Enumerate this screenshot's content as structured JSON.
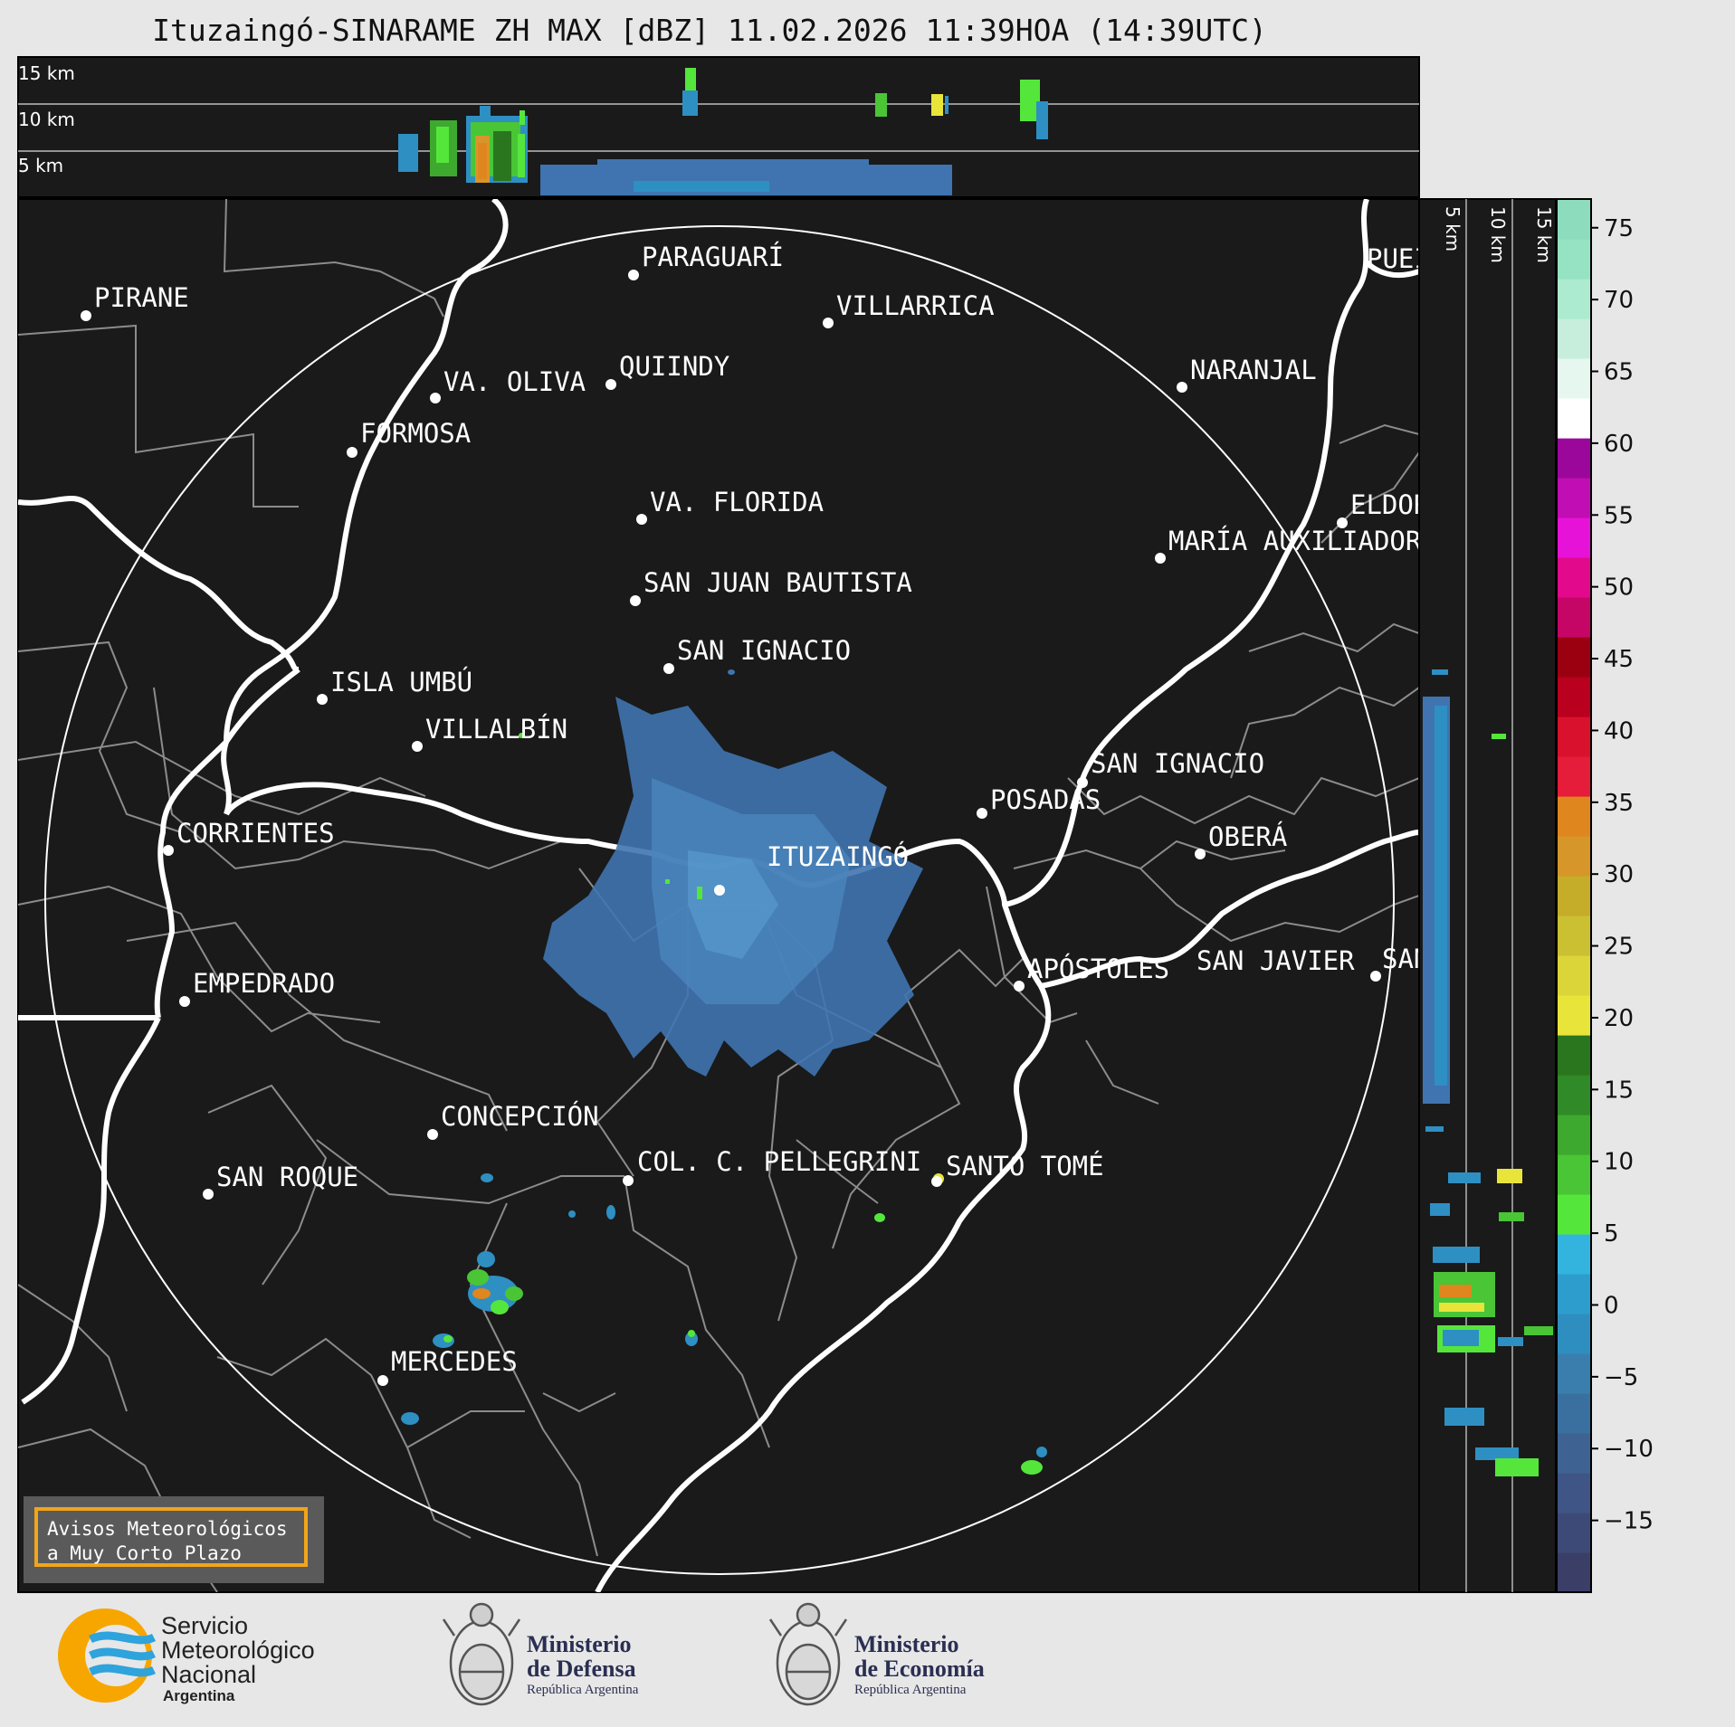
{
  "title": "Ituzaingó-SINARAME ZH MAX [dBZ] 11.02.2026 11:39HOA (14:39UTC)",
  "top_panel_labels": [
    "15 km",
    "10 km",
    "5 km"
  ],
  "side_panel_labels": [
    "5 km",
    "10 km",
    "15 km"
  ],
  "colorbar": {
    "ticks": [
      "75",
      "70",
      "65",
      "60",
      "55",
      "50",
      "45",
      "40",
      "35",
      "30",
      "25",
      "20",
      "15",
      "10",
      "5",
      "0",
      "−5",
      "−10",
      "−15"
    ],
    "range": [
      -20,
      77
    ],
    "colors": [
      "#3b3e66",
      "#3d4a78",
      "#3f5585",
      "#3e6392",
      "#3a70a0",
      "#3a7eae",
      "#2f8ec0",
      "#2d9dcd",
      "#33b4df",
      "#55e63c",
      "#49c536",
      "#3ea92f",
      "#308a27",
      "#2a761f",
      "#e9e43a",
      "#dcd53a",
      "#cbc032",
      "#c5ad2a",
      "#d6962a",
      "#e0861e",
      "#e51c3a",
      "#d9112c",
      "#b9001e",
      "#9b0010",
      "#c50667",
      "#e3098c",
      "#e712d8",
      "#c10eb4",
      "#9c079b",
      "#ffffff",
      "#e6f7ef",
      "#c7eedd",
      "#acebd0",
      "#95e3c3",
      "#8ddcbd"
    ]
  },
  "cities": [
    {
      "name": "PARAGUARÍ"
    },
    {
      "name": "VILLARRICA"
    },
    {
      "name": "PIRANE"
    },
    {
      "name": "QUIINDY"
    },
    {
      "name": "VA. OLIVA"
    },
    {
      "name": "NARANJAL"
    },
    {
      "name": "FORMOSA"
    },
    {
      "name": "VA. FLORIDA"
    },
    {
      "name": "ELDOR"
    },
    {
      "name": "MARÍA AUXILIADOR"
    },
    {
      "name": "SAN JUAN BAUTISTA"
    },
    {
      "name": "SAN IGNACIO"
    },
    {
      "name": "ISLA UMBÚ"
    },
    {
      "name": "VILLALBÍN"
    },
    {
      "name": "SAN IGNACIO"
    },
    {
      "name": "POSADAS"
    },
    {
      "name": "CORRIENTES"
    },
    {
      "name": "ITUZAINGÓ"
    },
    {
      "name": "OBERÁ"
    },
    {
      "name": "APÓSTOLES"
    },
    {
      "name": "SAN JAVIER"
    },
    {
      "name": "SAN"
    },
    {
      "name": "EMPEDRADO"
    },
    {
      "name": "CONCEPCIÓN"
    },
    {
      "name": "COL. C. PELLEGRINI"
    },
    {
      "name": "SANTO TOMÉ"
    },
    {
      "name": "SAN ROQUE"
    },
    {
      "name": "MERCEDES"
    },
    {
      "name": "PUEI"
    }
  ],
  "warning_box": {
    "line1": "Avisos Meteorológicos",
    "line2": "a Muy Corto Plazo"
  },
  "logos": {
    "smn": {
      "line1": "Servicio",
      "line2": "Meteorológico",
      "line3": "Nacional",
      "line4": "Argentina"
    },
    "defensa": {
      "line1": "Ministerio",
      "line2": "de Defensa",
      "line3": "República Argentina"
    },
    "economia": {
      "line1": "Ministerio",
      "line2": "de Economía",
      "line3": "República Argentina"
    }
  },
  "colors": {
    "map_bg": "#1a1a1a",
    "page_bg": "#e7e7e7",
    "rivers": "#ffffff",
    "borders": "#8c8c8c",
    "echo": "#3f74b0",
    "warning_border": "#f2a51a",
    "smn_orange": "#f7a600",
    "smn_blue": "#2ea3dc"
  }
}
